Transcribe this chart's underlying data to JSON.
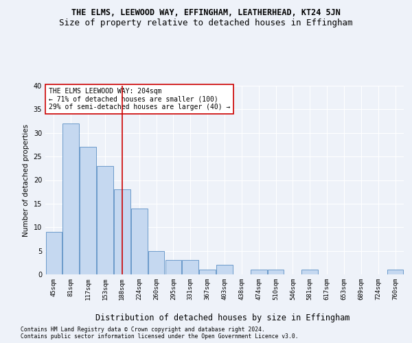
{
  "title": "THE ELMS, LEEWOOD WAY, EFFINGHAM, LEATHERHEAD, KT24 5JN",
  "subtitle": "Size of property relative to detached houses in Effingham",
  "xlabel": "Distribution of detached houses by size in Effingham",
  "ylabel": "Number of detached properties",
  "categories": [
    "45sqm",
    "81sqm",
    "117sqm",
    "153sqm",
    "188sqm",
    "224sqm",
    "260sqm",
    "295sqm",
    "331sqm",
    "367sqm",
    "403sqm",
    "438sqm",
    "474sqm",
    "510sqm",
    "546sqm",
    "581sqm",
    "617sqm",
    "653sqm",
    "689sqm",
    "724sqm",
    "760sqm"
  ],
  "values": [
    9,
    32,
    27,
    23,
    18,
    14,
    5,
    3,
    3,
    1,
    2,
    0,
    1,
    1,
    0,
    1,
    0,
    0,
    0,
    0,
    1
  ],
  "bar_color": "#c5d8f0",
  "bar_edge_color": "#5a8fc4",
  "vline_index": 4.5,
  "vline_color": "#cc0000",
  "annotation_text": "THE ELMS LEEWOOD WAY: 204sqm\n← 71% of detached houses are smaller (100)\n29% of semi-detached houses are larger (40) →",
  "annotation_box_color": "#ffffff",
  "annotation_box_edge": "#cc0000",
  "ylim": [
    0,
    40
  ],
  "yticks": [
    0,
    5,
    10,
    15,
    20,
    25,
    30,
    35,
    40
  ],
  "footer1": "Contains HM Land Registry data © Crown copyright and database right 2024.",
  "footer2": "Contains public sector information licensed under the Open Government Licence v3.0.",
  "background_color": "#eef2f9",
  "grid_color": "#ffffff",
  "title_fontsize": 8.5,
  "subtitle_fontsize": 9,
  "tick_fontsize": 6.5,
  "ylabel_fontsize": 7.5,
  "xlabel_fontsize": 8.5,
  "annotation_fontsize": 7,
  "footer_fontsize": 5.8
}
